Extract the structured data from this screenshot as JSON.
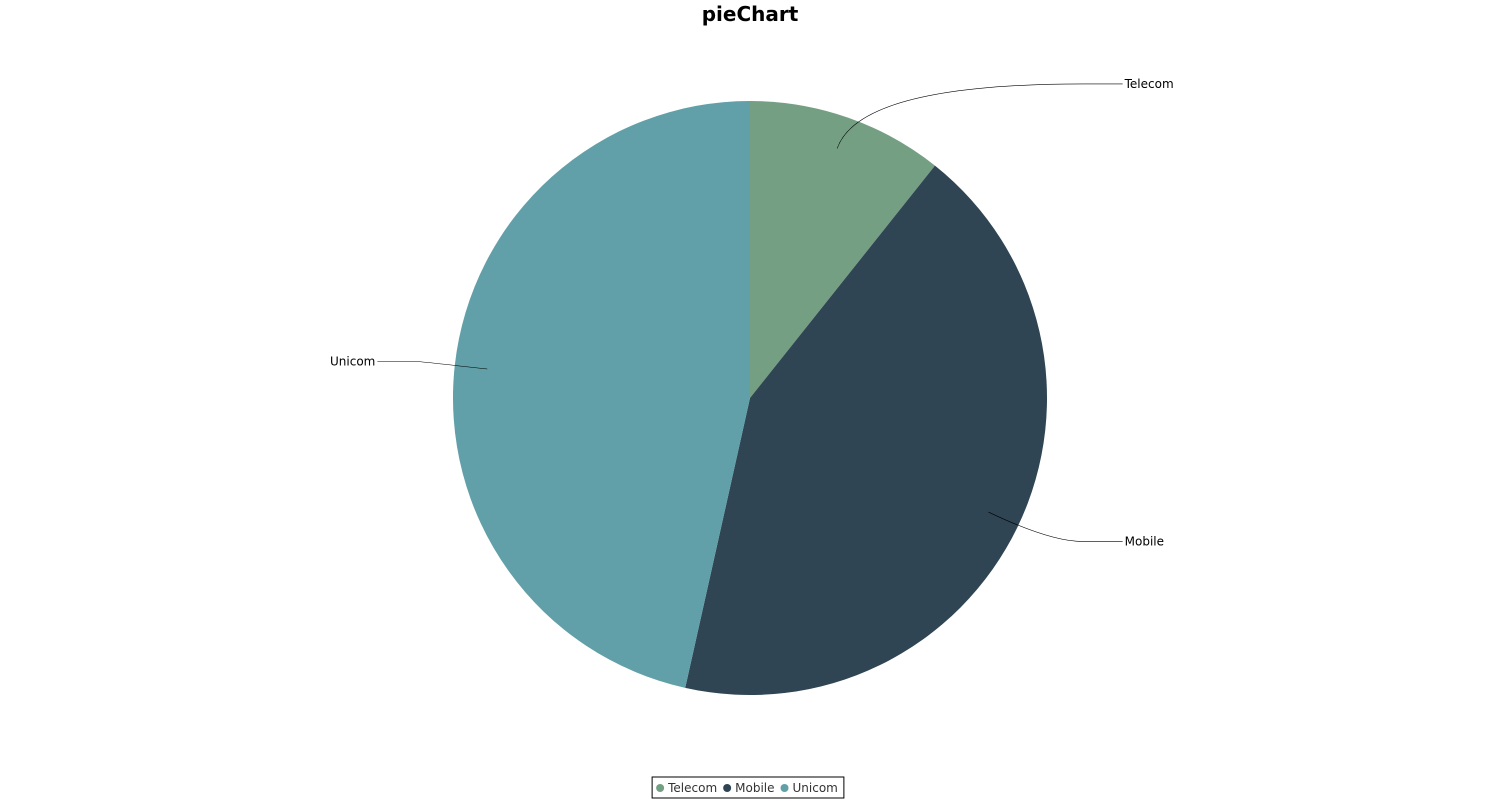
{
  "chart_data": {
    "type": "pie",
    "title": "pieChart",
    "categories": [
      "Telecom",
      "Mobile",
      "Unicom"
    ],
    "values": [
      10.7,
      42.8,
      46.5
    ],
    "colors": [
      "#749f83",
      "#2f4554",
      "#61a0a8"
    ],
    "legend": {
      "placement": "bottom",
      "entries": [
        "Telecom",
        "Mobile",
        "Unicom"
      ]
    }
  }
}
